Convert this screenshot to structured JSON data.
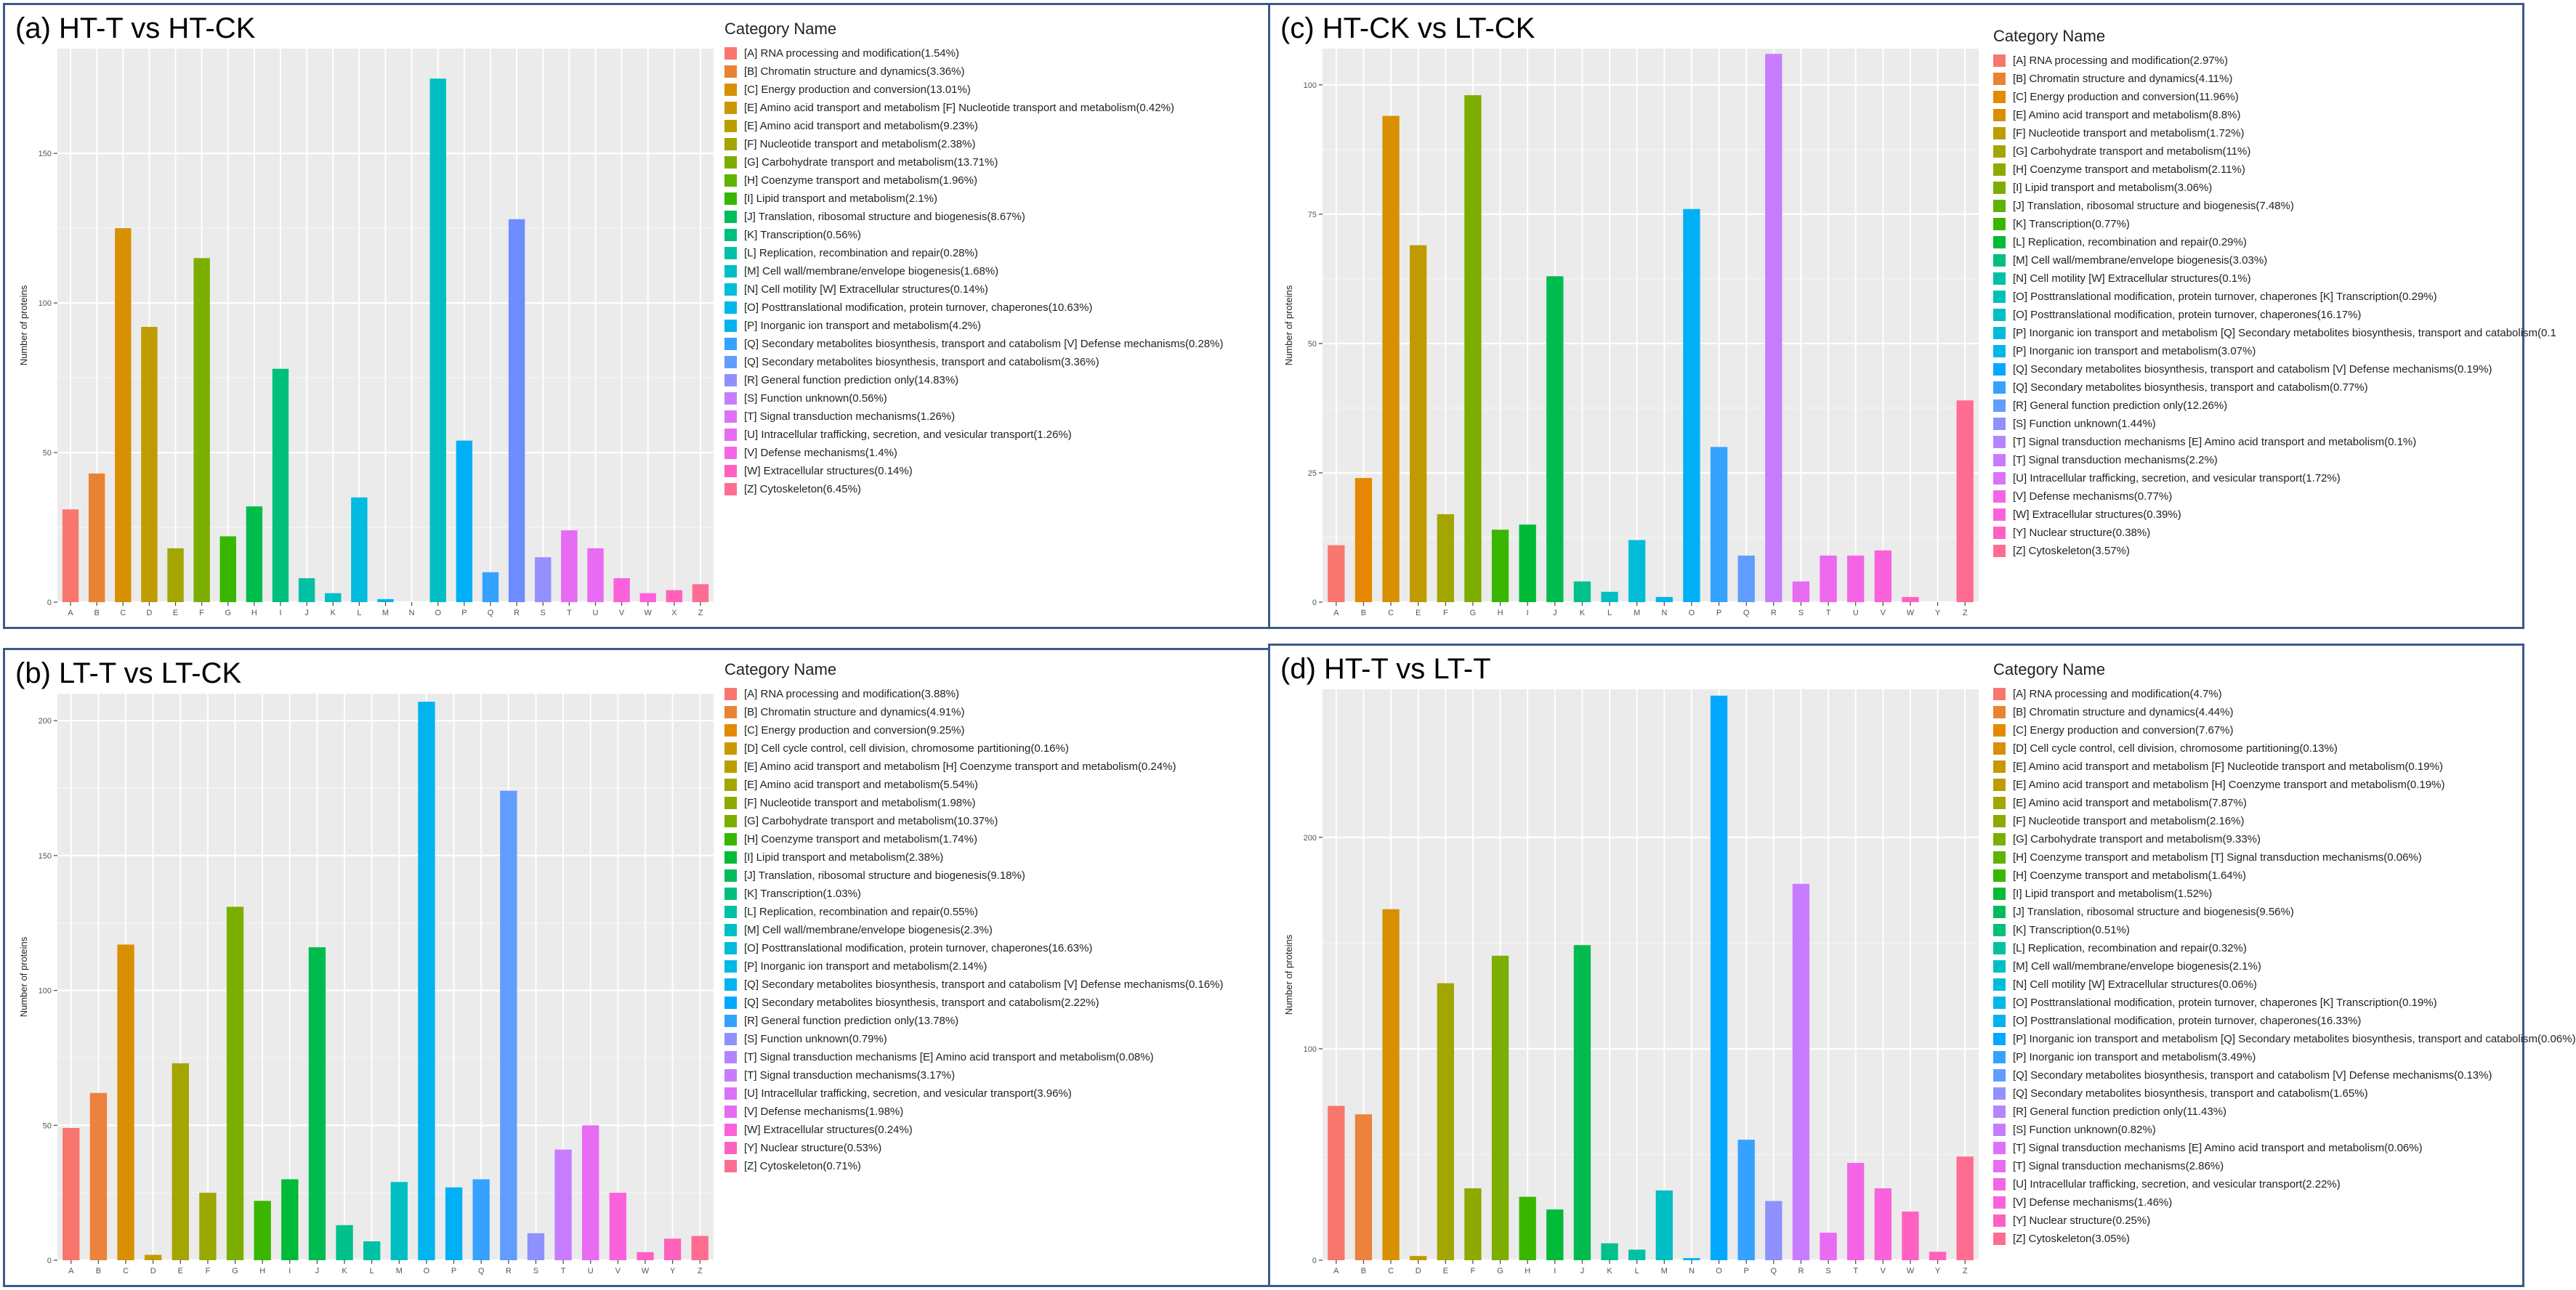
{
  "panels": [
    {
      "title": "(a) HT-T vs HT-CK",
      "legend_title": "Category Name",
      "chart_data": {
        "type": "bar",
        "ylabel": "Number of proteins",
        "xlabel": "",
        "ylim": [
          0,
          185
        ],
        "yticks": [
          0,
          50,
          100,
          150
        ],
        "grid": true,
        "categories": [
          "A",
          "B",
          "C",
          "D",
          "E",
          "F",
          "G",
          "H",
          "I",
          "J",
          "K",
          "L",
          "M",
          "N",
          "O",
          "P",
          "Q",
          "R",
          "S",
          "T",
          "U",
          "V",
          "W",
          "X",
          "Z"
        ],
        "values": [
          31,
          43,
          125,
          92,
          18,
          115,
          22,
          32,
          78,
          8,
          3,
          35,
          1,
          0,
          175,
          54,
          10,
          128,
          15,
          24,
          18,
          8,
          3,
          4,
          6
        ],
        "colors": [
          "#f8766d",
          "#ea8331",
          "#d89000",
          "#c09b00",
          "#a3a500",
          "#7cae00",
          "#39b600",
          "#00bb4e",
          "#00bf7d",
          "#00c1a3",
          "#00bfc4",
          "#00bae0",
          "#00b0f6",
          "#35a2ff",
          "#9590ff",
          "#c77cff",
          "#e76bf3",
          "#fa62db",
          "#ff62bc",
          "#ff6c91",
          "#f8766d",
          "#ea8331",
          "#d89000",
          "#c09b00",
          "#a3a500"
        ],
        "bar_colors": [
          "#f8766d",
          "#ea8331",
          "#d89000",
          "#c09b00",
          "#a3a500",
          "#7cae00",
          "#39b600",
          "#00bb4e",
          "#00bf7d",
          "#00c1a3",
          "#00bfc4",
          "#00bae0",
          "#00b0f6",
          "#00b0f6",
          "#00bfc4",
          "#00b0f6",
          "#35a2ff",
          "#6e8cff",
          "#9590ff",
          "#e76bf3",
          "#e76bf3",
          "#fa62db",
          "#fa62db",
          "#ff62bc",
          "#ff6c91"
        ]
      },
      "legend": [
        "[A] RNA processing and modification(1.54%)",
        "[B] Chromatin structure and dynamics(3.36%)",
        "[C] Energy production and conversion(13.01%)",
        "[E] Amino acid transport and metabolism [F] Nucleotide transport and metabolism(0.42%)",
        "[E] Amino acid transport and metabolism(9.23%)",
        "[F] Nucleotide transport and metabolism(2.38%)",
        "[G] Carbohydrate transport and metabolism(13.71%)",
        "[H] Coenzyme transport and metabolism(1.96%)",
        "[I] Lipid transport and metabolism(2.1%)",
        "[J] Translation, ribosomal structure and biogenesis(8.67%)",
        "[K] Transcription(0.56%)",
        "[L] Replication, recombination and repair(0.28%)",
        "[M] Cell wall/membrane/envelope biogenesis(1.68%)",
        "[N] Cell motility [W] Extracellular structures(0.14%)",
        "[O] Posttranslational modification, protein turnover, chaperones(10.63%)",
        "[P] Inorganic ion transport and metabolism(4.2%)",
        "[Q] Secondary metabolites biosynthesis, transport and catabolism [V] Defense mechanisms(0.28%)",
        "[Q] Secondary metabolites biosynthesis, transport and catabolism(3.36%)",
        "[R] General function prediction only(14.83%)",
        "[S] Function unknown(0.56%)",
        "[T] Signal transduction mechanisms(1.26%)",
        "[U] Intracellular trafficking, secretion, and vesicular transport(1.26%)",
        "[V] Defense mechanisms(1.4%)",
        "[W] Extracellular structures(0.14%)",
        "[Z] Cytoskeleton(6.45%)"
      ]
    },
    {
      "title": "(c) HT-CK vs LT-CK",
      "legend_title": "Category Name",
      "chart_data": {
        "type": "bar",
        "ylabel": "Number of proteins",
        "xlabel": "",
        "ylim": [
          0,
          107
        ],
        "yticks": [
          0,
          25,
          50,
          75,
          100
        ],
        "grid": true,
        "categories": [
          "A",
          "B",
          "C",
          "E",
          "F",
          "G",
          "H",
          "I",
          "J",
          "K",
          "L",
          "M",
          "N",
          "O",
          "P",
          "Q",
          "R",
          "S",
          "T",
          "U",
          "V",
          "W",
          "Y",
          "Z"
        ],
        "values": [
          11,
          24,
          94,
          69,
          17,
          98,
          14,
          15,
          63,
          4,
          2,
          12,
          1,
          76,
          30,
          9,
          106,
          4,
          9,
          9,
          10,
          1,
          0,
          39
        ],
        "bar_colors": [
          "#f8766d",
          "#e58700",
          "#d89000",
          "#c09b00",
          "#a3a500",
          "#7cae00",
          "#39b600",
          "#00ba38",
          "#00bb4e",
          "#00c08b",
          "#00bfc4",
          "#00bcd8",
          "#00b4ef",
          "#00b0f6",
          "#35a2ff",
          "#619cff",
          "#c77cff",
          "#e76bf3",
          "#ed68ed",
          "#f365e6",
          "#fa62db",
          "#ff61c3",
          "#ff62bc",
          "#ff6c91"
        ]
      },
      "legend": [
        "[A] RNA processing and modification(2.97%)",
        "[B] Chromatin structure and dynamics(4.11%)",
        "[C] Energy production and conversion(11.96%)",
        "[E] Amino acid transport and metabolism(8.8%)",
        "[F] Nucleotide transport and metabolism(1.72%)",
        "[G] Carbohydrate transport and metabolism(11%)",
        "[H] Coenzyme transport and metabolism(2.11%)",
        "[I] Lipid transport and metabolism(3.06%)",
        "[J] Translation, ribosomal structure and biogenesis(7.48%)",
        "[K] Transcription(0.77%)",
        "[L] Replication, recombination and repair(0.29%)",
        "[M] Cell wall/membrane/envelope biogenesis(3.03%)",
        "[N] Cell motility [W] Extracellular structures(0.1%)",
        "[O] Posttranslational modification, protein turnover, chaperones [K] Transcription(0.29%)",
        "[O] Posttranslational modification, protein turnover, chaperones(16.17%)",
        "[P] Inorganic ion transport and metabolism [Q] Secondary metabolites biosynthesis, transport and catabolism(0.1",
        "[P] Inorganic ion transport and metabolism(3.07%)",
        "[Q] Secondary metabolites biosynthesis, transport and catabolism [V] Defense mechanisms(0.19%)",
        "[Q] Secondary metabolites biosynthesis, transport and catabolism(0.77%)",
        "[R] General function prediction only(12.26%)",
        "[S] Function unknown(1.44%)",
        "[T] Signal transduction mechanisms [E] Amino acid transport and metabolism(0.1%)",
        "[T] Signal transduction mechanisms(2.2%)",
        "[U] Intracellular trafficking, secretion, and vesicular transport(1.72%)",
        "[V] Defense mechanisms(0.77%)",
        "[W] Extracellular structures(0.39%)",
        "[Y] Nuclear structure(0.38%)",
        "[Z] Cytoskeleton(3.57%)"
      ]
    },
    {
      "title": "(b) LT-T vs LT-CK",
      "legend_title": "Category Name",
      "chart_data": {
        "type": "bar",
        "ylabel": "Number of proteins",
        "xlabel": "",
        "ylim": [
          0,
          210
        ],
        "yticks": [
          0,
          50,
          100,
          150,
          200
        ],
        "grid": true,
        "categories": [
          "A",
          "B",
          "C",
          "D",
          "E",
          "F",
          "G",
          "H",
          "I",
          "J",
          "K",
          "L",
          "M",
          "O",
          "P",
          "Q",
          "R",
          "S",
          "T",
          "U",
          "V",
          "W",
          "Y",
          "Z"
        ],
        "values": [
          49,
          62,
          117,
          2,
          73,
          25,
          131,
          22,
          30,
          116,
          13,
          7,
          29,
          207,
          27,
          30,
          174,
          10,
          41,
          50,
          25,
          3,
          8,
          9
        ],
        "bar_colors": [
          "#f8766d",
          "#ec823c",
          "#d89000",
          "#c49a00",
          "#a3a500",
          "#9aa800",
          "#7cae00",
          "#39b600",
          "#00ba38",
          "#00bb4e",
          "#00c08b",
          "#00c1a3",
          "#00bfc4",
          "#00b4ef",
          "#00b0f6",
          "#35a2ff",
          "#619cff",
          "#8f91ff",
          "#c77cff",
          "#e76bf3",
          "#fa62db",
          "#ff61c3",
          "#ff62bc",
          "#ff6c91"
        ]
      },
      "legend": [
        "[A] RNA processing and modification(3.88%)",
        "[B] Chromatin structure and dynamics(4.91%)",
        "[C] Energy production and conversion(9.25%)",
        "[D] Cell cycle control, cell division, chromosome partitioning(0.16%)",
        "[E] Amino acid transport and metabolism [H] Coenzyme transport and metabolism(0.24%)",
        "[E] Amino acid transport and metabolism(5.54%)",
        "[F] Nucleotide transport and metabolism(1.98%)",
        "[G] Carbohydrate transport and metabolism(10.37%)",
        "[H] Coenzyme transport and metabolism(1.74%)",
        "[I] Lipid transport and metabolism(2.38%)",
        "[J] Translation, ribosomal structure and biogenesis(9.18%)",
        "[K] Transcription(1.03%)",
        "[L] Replication, recombination and repair(0.55%)",
        "[M] Cell wall/membrane/envelope biogenesis(2.3%)",
        "[O] Posttranslational modification, protein turnover, chaperones(16.63%)",
        "[P] Inorganic ion transport and metabolism(2.14%)",
        "[Q] Secondary metabolites biosynthesis, transport and catabolism [V] Defense mechanisms(0.16%)",
        "[Q] Secondary metabolites biosynthesis, transport and catabolism(2.22%)",
        "[R] General function prediction only(13.78%)",
        "[S] Function unknown(0.79%)",
        "[T] Signal transduction mechanisms [E] Amino acid transport and metabolism(0.08%)",
        "[T] Signal transduction mechanisms(3.17%)",
        "[U] Intracellular trafficking, secretion, and vesicular transport(3.96%)",
        "[V] Defense mechanisms(1.98%)",
        "[W] Extracellular structures(0.24%)",
        "[Y] Nuclear structure(0.53%)",
        "[Z] Cytoskeleton(0.71%)"
      ]
    },
    {
      "title": "(d) HT-T vs LT-T",
      "legend_title": "Category Name",
      "chart_data": {
        "type": "bar",
        "ylabel": "Number of proteins",
        "xlabel": "",
        "ylim": [
          0,
          270
        ],
        "yticks": [
          0,
          100,
          200
        ],
        "grid": true,
        "categories": [
          "A",
          "B",
          "C",
          "D",
          "E",
          "F",
          "G",
          "H",
          "I",
          "J",
          "K",
          "L",
          "M",
          "N",
          "O",
          "P",
          "Q",
          "R",
          "S",
          "T",
          "V",
          "W",
          "Y",
          "Z"
        ],
        "values": [
          73,
          69,
          166,
          2,
          131,
          34,
          144,
          30,
          24,
          149,
          8,
          5,
          33,
          1,
          267,
          57,
          28,
          178,
          13,
          46,
          34,
          23,
          4,
          49
        ],
        "bar_colors": [
          "#f8766d",
          "#ec823c",
          "#d89000",
          "#c49a00",
          "#a3a500",
          "#8fa900",
          "#7cae00",
          "#39b600",
          "#00ba38",
          "#00bb4e",
          "#00c08b",
          "#00c1a3",
          "#00bfc4",
          "#00b4ef",
          "#00a9ff",
          "#35a2ff",
          "#8f91ff",
          "#c77cff",
          "#e76bf3",
          "#f365e6",
          "#fa62db",
          "#ff61c3",
          "#ff62bc",
          "#ff6c91"
        ]
      },
      "legend": [
        "[A] RNA processing and modification(4.7%)",
        "[B] Chromatin structure and dynamics(4.44%)",
        "[C] Energy production and conversion(7.67%)",
        "[D] Cell cycle control, cell division, chromosome partitioning(0.13%)",
        "[E] Amino acid transport and metabolism [F] Nucleotide transport and metabolism(0.19%)",
        "[E] Amino acid transport and metabolism [H] Coenzyme transport and metabolism(0.19%)",
        "[E] Amino acid transport and metabolism(7.87%)",
        "[F] Nucleotide transport and metabolism(2.16%)",
        "[G] Carbohydrate transport and metabolism(9.33%)",
        "[H] Coenzyme transport and metabolism [T] Signal transduction mechanisms(0.06%)",
        "[H] Coenzyme transport and metabolism(1.64%)",
        "[I] Lipid transport and metabolism(1.52%)",
        "[J] Translation, ribosomal structure and biogenesis(9.56%)",
        "[K] Transcription(0.51%)",
        "[L] Replication, recombination and repair(0.32%)",
        "[M] Cell wall/membrane/envelope biogenesis(2.1%)",
        "[N] Cell motility [W] Extracellular structures(0.06%)",
        "[O] Posttranslational modification, protein turnover, chaperones [K] Transcription(0.19%)",
        "[O] Posttranslational modification, protein turnover, chaperones(16.33%)",
        "[P] Inorganic ion transport and metabolism [Q] Secondary metabolites biosynthesis, transport and catabolism(0.06%)",
        "[P] Inorganic ion transport and metabolism(3.49%)",
        "[Q] Secondary metabolites biosynthesis, transport and catabolism [V] Defense mechanisms(0.13%)",
        "[Q] Secondary metabolites biosynthesis, transport and catabolism(1.65%)",
        "[R] General function prediction only(11.43%)",
        "[S] Function unknown(0.82%)",
        "[T] Signal transduction mechanisms [E] Amino acid transport and metabolism(0.06%)",
        "[T] Signal transduction mechanisms(2.86%)",
        "[U] Intracellular trafficking, secretion, and vesicular transport(2.22%)",
        "[V] Defense mechanisms(1.46%)",
        "[Y] Nuclear structure(0.25%)",
        "[Z] Cytoskeleton(3.05%)"
      ]
    }
  ],
  "legend_colors": [
    "#f8766d",
    "#ea8331",
    "#e28b00",
    "#d89000",
    "#c99800",
    "#bb9d00",
    "#a3a500",
    "#8fa900",
    "#7cae00",
    "#5eb300",
    "#39b600",
    "#00ba38",
    "#00bc59",
    "#00bf7d",
    "#00c1a3",
    "#00c0b8",
    "#00bfc4",
    "#00bcd8",
    "#00b8e7",
    "#00b4ef",
    "#00a9ff",
    "#35a2ff",
    "#619cff",
    "#8f91ff",
    "#b385ff",
    "#c77cff",
    "#dc71fa",
    "#e76bf3",
    "#f365e6",
    "#fa62db",
    "#ff61c3",
    "#ff6c91"
  ]
}
